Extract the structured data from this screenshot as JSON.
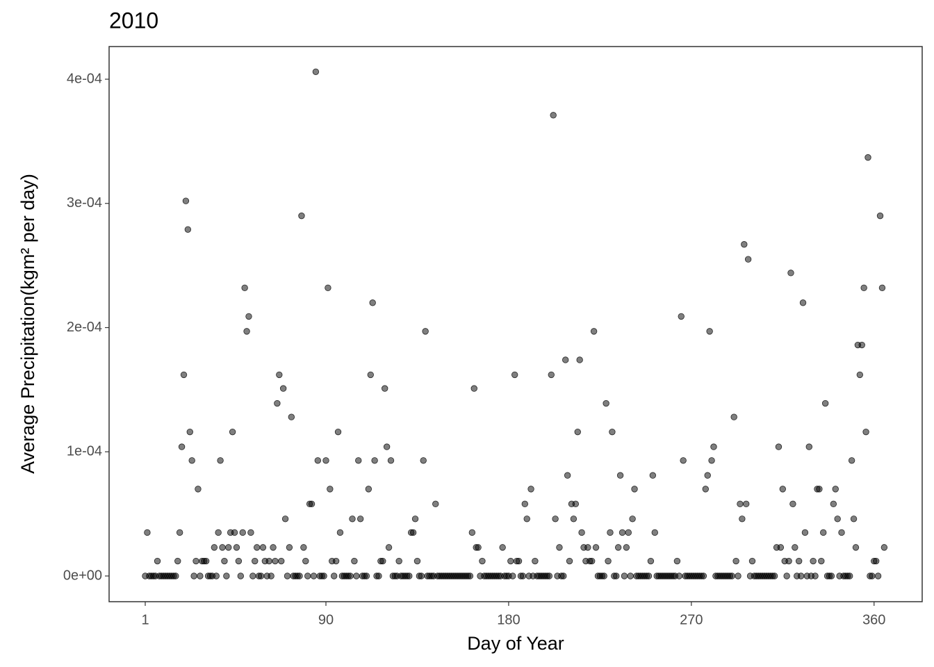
{
  "chart_data": {
    "type": "scatter",
    "title": "2010",
    "x_label": "Day of Year",
    "y_label": "Average Precipitation(kgm² per day)",
    "color": "#000000",
    "opacity": 0.5,
    "grid": false,
    "xlim": [
      -16.8,
      383.7
    ],
    "xticks": [
      1,
      90,
      180,
      270,
      360
    ],
    "ylim": [
      -2.07e-05,
      0.0004263
    ],
    "yticks": [
      {
        "value": 0,
        "label": "0e+00"
      },
      {
        "value": 0.0001,
        "label": "1e-04"
      },
      {
        "value": 0.0002,
        "label": "2e-04"
      },
      {
        "value": 0.0003,
        "label": "3e-04"
      },
      {
        "value": 0.0004,
        "label": "4e-04"
      }
    ],
    "x": [
      1,
      2,
      3,
      4,
      5,
      6,
      7,
      8,
      9,
      10,
      11,
      12,
      13,
      14,
      15,
      16,
      17,
      18,
      19,
      20,
      21,
      22,
      23,
      24,
      25,
      26,
      27,
      28,
      29,
      30,
      31,
      32,
      33,
      34,
      35,
      36,
      37,
      38,
      39,
      40,
      41,
      42,
      43,
      44,
      45,
      46,
      47,
      48,
      49,
      50,
      51,
      52,
      53,
      54,
      55,
      56,
      57,
      58,
      59,
      60,
      61,
      62,
      63,
      64,
      65,
      66,
      67,
      68,
      69,
      70,
      71,
      72,
      73,
      74,
      75,
      76,
      77,
      78,
      79,
      80,
      81,
      82,
      83,
      84,
      85,
      86,
      87,
      88,
      89,
      90,
      91,
      92,
      93,
      94,
      95,
      96,
      97,
      98,
      99,
      100,
      101,
      102,
      103,
      104,
      105,
      106,
      107,
      108,
      109,
      110,
      111,
      112,
      113,
      114,
      115,
      116,
      117,
      118,
      119,
      120,
      121,
      122,
      123,
      124,
      125,
      126,
      127,
      128,
      129,
      130,
      131,
      132,
      133,
      134,
      135,
      136,
      137,
      138,
      139,
      140,
      141,
      142,
      143,
      144,
      145,
      146,
      147,
      148,
      149,
      150,
      151,
      152,
      153,
      154,
      155,
      156,
      157,
      158,
      159,
      160,
      161,
      162,
      163,
      164,
      165,
      166,
      167,
      168,
      169,
      170,
      171,
      172,
      173,
      174,
      175,
      176,
      177,
      178,
      179,
      180,
      181,
      182,
      183,
      184,
      185,
      186,
      187,
      188,
      189,
      190,
      191,
      192,
      193,
      194,
      195,
      196,
      197,
      198,
      199,
      200,
      201,
      202,
      203,
      204,
      205,
      206,
      207,
      208,
      209,
      210,
      211,
      212,
      213,
      214,
      215,
      216,
      217,
      218,
      219,
      220,
      221,
      222,
      223,
      224,
      225,
      226,
      227,
      228,
      229,
      230,
      231,
      232,
      233,
      234,
      235,
      236,
      237,
      238,
      239,
      240,
      241,
      242,
      243,
      244,
      245,
      246,
      247,
      248,
      249,
      250,
      251,
      252,
      253,
      254,
      255,
      256,
      257,
      258,
      259,
      260,
      261,
      262,
      263,
      264,
      265,
      266,
      267,
      268,
      269,
      270,
      271,
      272,
      273,
      274,
      275,
      276,
      277,
      278,
      279,
      280,
      281,
      282,
      283,
      284,
      285,
      286,
      287,
      288,
      289,
      290,
      291,
      292,
      293,
      294,
      295,
      296,
      297,
      298,
      299,
      300,
      301,
      302,
      303,
      304,
      305,
      306,
      307,
      308,
      309,
      310,
      311,
      312,
      313,
      314,
      315,
      316,
      317,
      318,
      319,
      320,
      321,
      322,
      323,
      324,
      325,
      326,
      327,
      328,
      329,
      330,
      331,
      332,
      333,
      334,
      335,
      336,
      337,
      338,
      339,
      340,
      341,
      342,
      343,
      344,
      345,
      346,
      347,
      348,
      349,
      350,
      351,
      352,
      353,
      354,
      355,
      356,
      357,
      358,
      359,
      360,
      361,
      362,
      363,
      364,
      365
    ],
    "values": [
      0,
      3.5e-05,
      0,
      0,
      0,
      0,
      1.2e-05,
      0,
      0,
      0,
      0,
      0,
      0,
      0,
      0,
      0,
      1.2e-05,
      3.5e-05,
      0.000104,
      0.000162,
      0.000302,
      0.000279,
      0.000116,
      9.3e-05,
      0,
      1.2e-05,
      7e-05,
      0,
      1.2e-05,
      1.2e-05,
      1.2e-05,
      0,
      0,
      0,
      2.3e-05,
      0,
      3.5e-05,
      9.3e-05,
      2.3e-05,
      1.2e-05,
      0,
      2.3e-05,
      3.5e-05,
      0.000116,
      3.5e-05,
      2.3e-05,
      1.2e-05,
      0,
      3.5e-05,
      0.000232,
      0.000197,
      0.000209,
      3.5e-05,
      0,
      1.2e-05,
      2.3e-05,
      0,
      0,
      2.3e-05,
      1.2e-05,
      0,
      1.2e-05,
      0,
      2.3e-05,
      1.2e-05,
      0.000139,
      0.000162,
      1.2e-05,
      0.000151,
      4.6e-05,
      0,
      2.3e-05,
      0.000128,
      0,
      0,
      0,
      0,
      0.00029,
      2.3e-05,
      1.2e-05,
      0,
      5.8e-05,
      5.8e-05,
      0,
      0.000406,
      9.3e-05,
      0,
      0,
      0,
      9.3e-05,
      0.000232,
      7e-05,
      1.2e-05,
      0,
      1.2e-05,
      0.000116,
      3.5e-05,
      0,
      0,
      0,
      0,
      0,
      4.6e-05,
      1.2e-05,
      0,
      9.3e-05,
      4.6e-05,
      0,
      0,
      0,
      7e-05,
      0.000162,
      0.00022,
      9.3e-05,
      0,
      0,
      1.2e-05,
      1.2e-05,
      0.000151,
      0.000104,
      2.3e-05,
      9.3e-05,
      0,
      0,
      0,
      1.2e-05,
      0,
      0,
      0,
      0,
      0,
      3.5e-05,
      3.5e-05,
      4.6e-05,
      1.2e-05,
      0,
      0,
      9.3e-05,
      0.000197,
      0,
      0,
      0,
      0,
      5.8e-05,
      0,
      0,
      0,
      0,
      0,
      0,
      0,
      0,
      0,
      0,
      0,
      0,
      0,
      0,
      0,
      0,
      0,
      3.5e-05,
      0.000151,
      2.3e-05,
      2.3e-05,
      0,
      1.2e-05,
      0,
      0,
      0,
      0,
      0,
      0,
      0,
      0,
      0,
      2.3e-05,
      0,
      0,
      0,
      1.2e-05,
      0,
      0.000162,
      1.2e-05,
      1.2e-05,
      0,
      0,
      5.8e-05,
      4.6e-05,
      0,
      7e-05,
      0,
      1.2e-05,
      0,
      0,
      0,
      0,
      0,
      0,
      0,
      0.000162,
      0.000371,
      4.6e-05,
      0,
      2.3e-05,
      0,
      0,
      0.000174,
      8.1e-05,
      1.2e-05,
      5.8e-05,
      4.6e-05,
      5.8e-05,
      0.000116,
      0.000174,
      3.5e-05,
      2.3e-05,
      1.2e-05,
      2.3e-05,
      1.2e-05,
      1.2e-05,
      0.000197,
      2.3e-05,
      0,
      0,
      0,
      0,
      0.000139,
      1.2e-05,
      3.5e-05,
      0.000116,
      0,
      0,
      2.3e-05,
      8.1e-05,
      3.5e-05,
      0,
      2.3e-05,
      3.5e-05,
      0,
      4.6e-05,
      7e-05,
      0,
      0,
      0,
      0,
      0,
      0,
      0,
      1.2e-05,
      8.1e-05,
      3.5e-05,
      0,
      0,
      0,
      0,
      0,
      0,
      0,
      0,
      0,
      0,
      1.2e-05,
      0,
      0.000209,
      9.3e-05,
      0,
      0,
      0,
      0,
      0,
      0,
      0,
      0,
      0,
      0,
      7e-05,
      8.1e-05,
      0.000197,
      9.3e-05,
      0.000104,
      0,
      0,
      0,
      0,
      0,
      0,
      0,
      0,
      0,
      0.000128,
      1.2e-05,
      0,
      5.8e-05,
      4.6e-05,
      0.000267,
      5.8e-05,
      0.000255,
      0,
      1.2e-05,
      0,
      0,
      0,
      0,
      0,
      0,
      0,
      0,
      0,
      0,
      0,
      2.3e-05,
      0.000104,
      2.3e-05,
      7e-05,
      1.2e-05,
      0,
      1.2e-05,
      0.000244,
      5.8e-05,
      2.3e-05,
      0,
      1.2e-05,
      0,
      0.00022,
      3.5e-05,
      0,
      0.000104,
      0,
      1.2e-05,
      0,
      7e-05,
      7e-05,
      1.2e-05,
      3.5e-05,
      0.000139,
      0,
      0,
      0,
      5.8e-05,
      7e-05,
      4.6e-05,
      0,
      3.5e-05,
      0,
      0,
      0,
      0,
      9.3e-05,
      4.6e-05,
      2.3e-05,
      0.000186,
      0.000162,
      0.000186,
      0.000232,
      0.000116,
      0.000337,
      0,
      0,
      1.2e-05,
      1.2e-05,
      0,
      0.00029,
      0.000232,
      2.3e-05
    ]
  }
}
